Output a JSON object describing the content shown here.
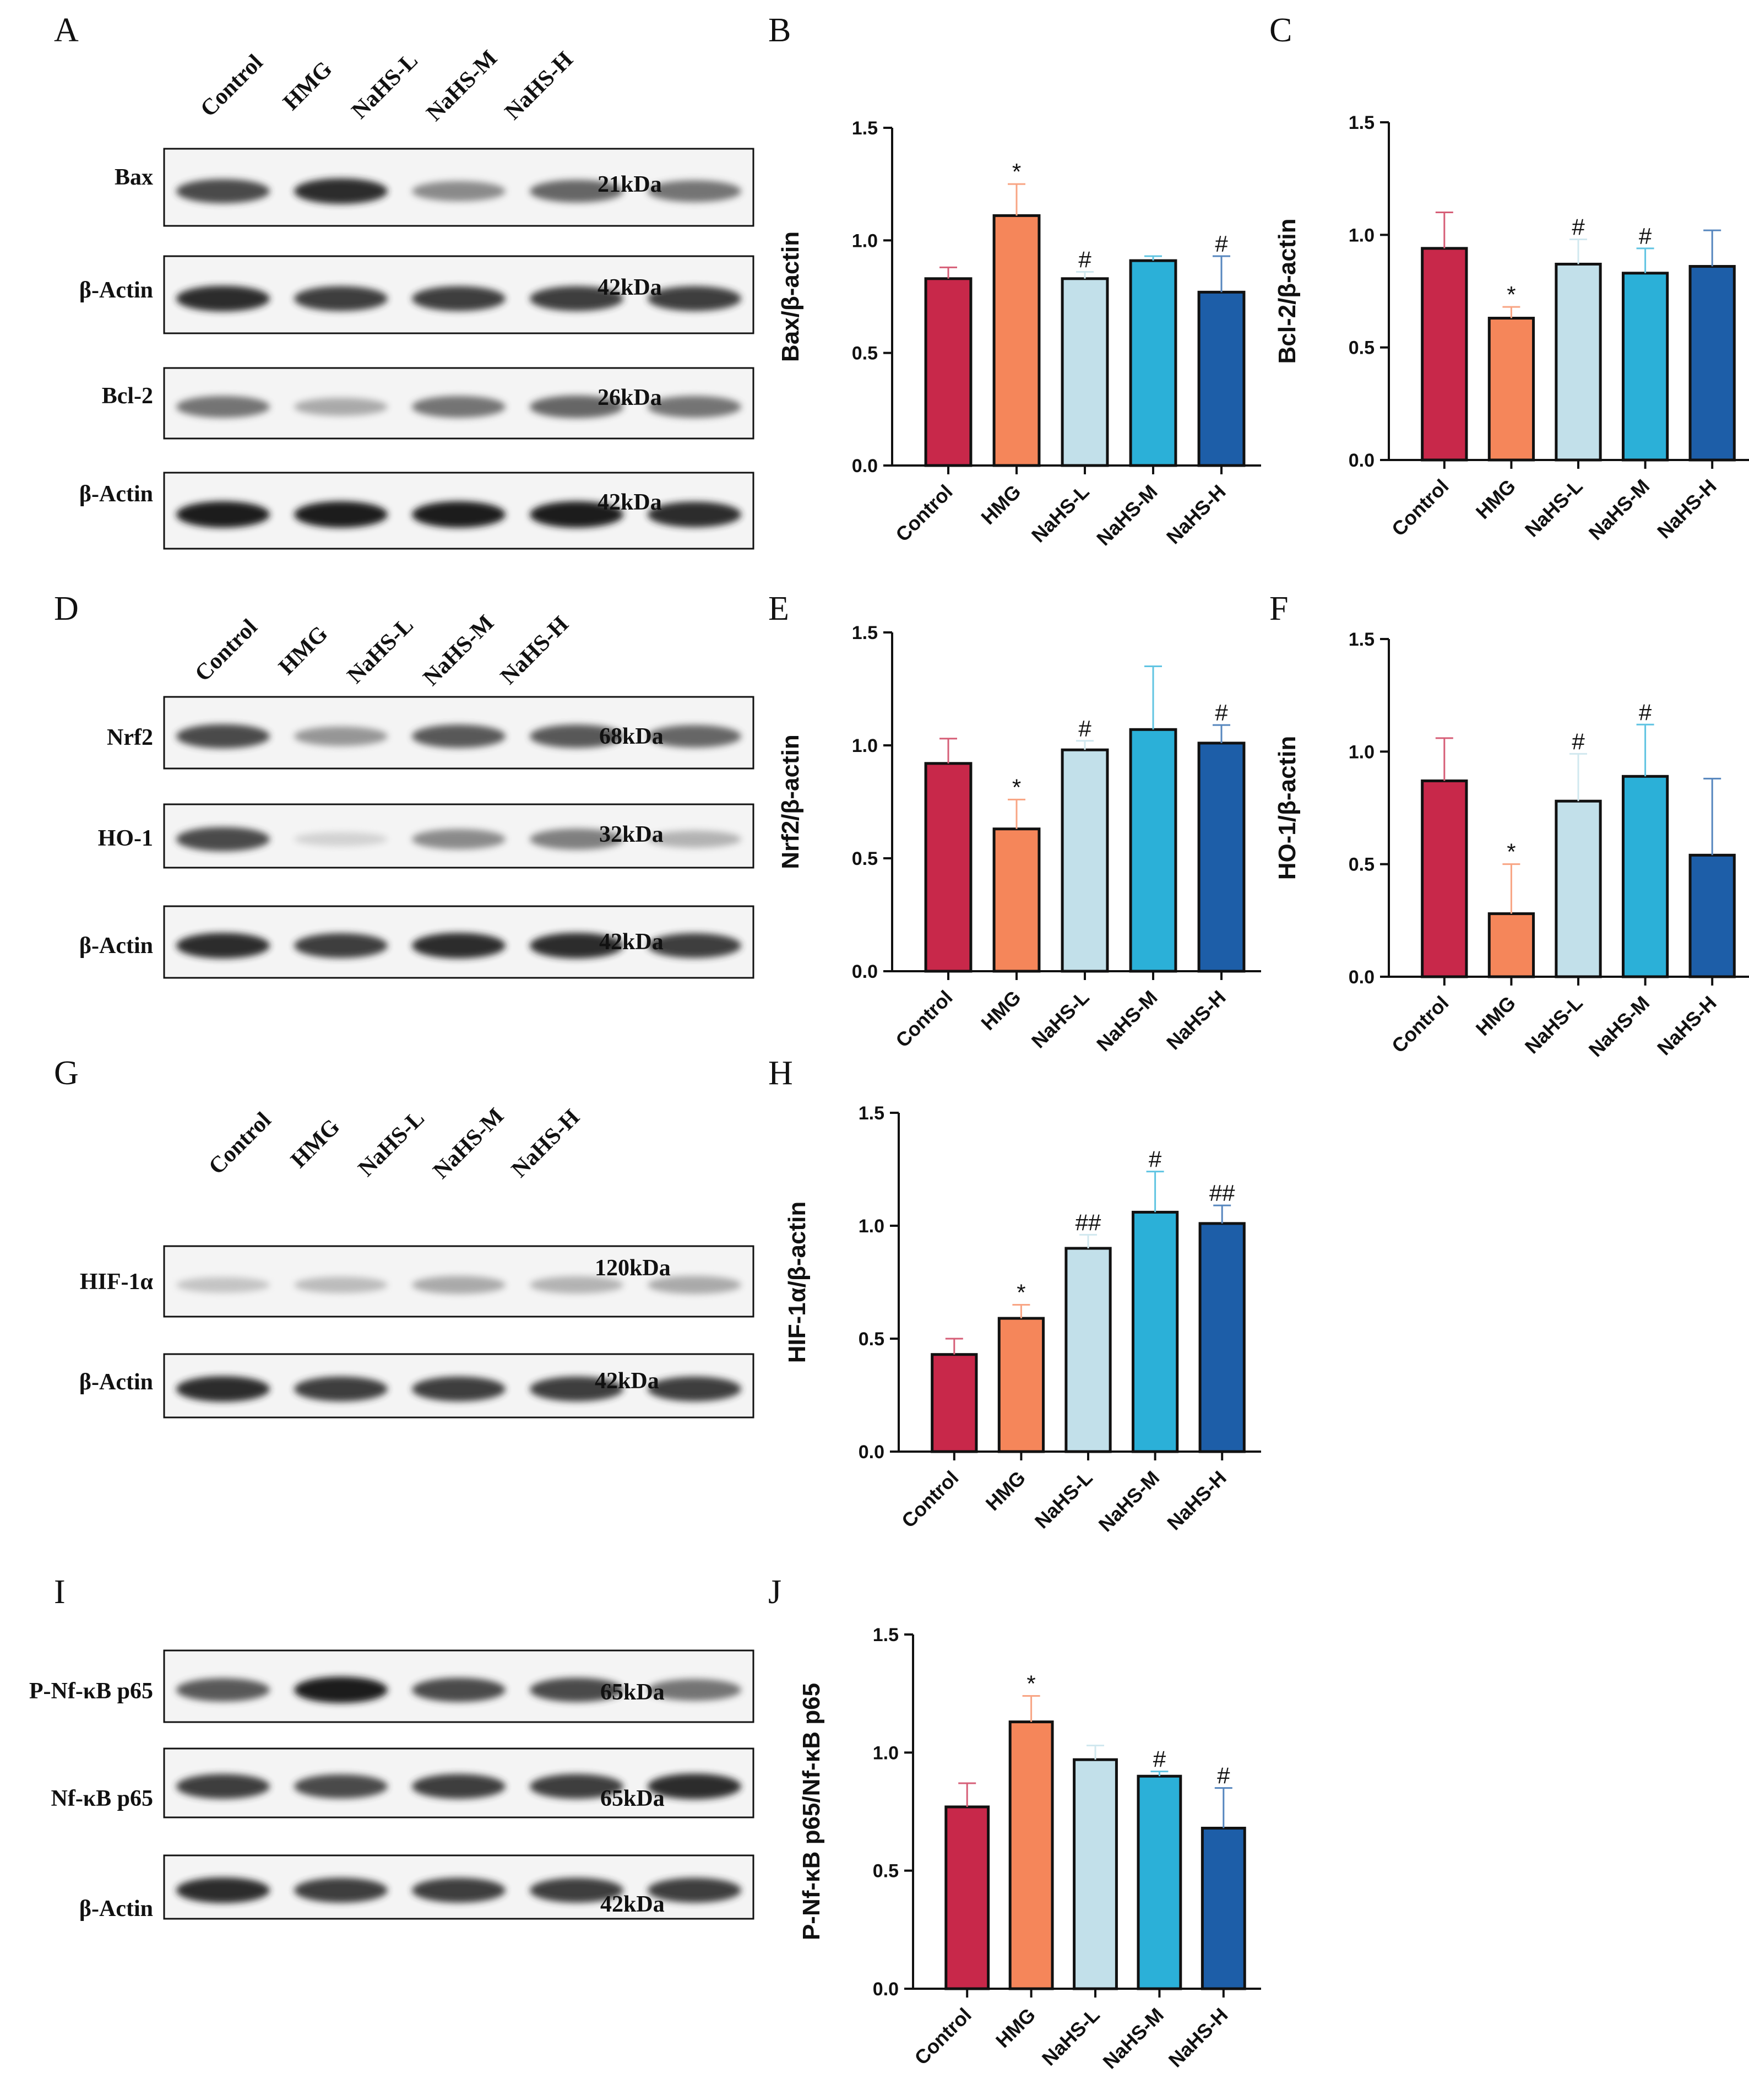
{
  "palette": {
    "Control": "#c8284a",
    "HMG": "#f5865a",
    "NaHS-L": "#c2e0ea",
    "NaHS-M": "#2bb0d8",
    "NaHS-H": "#1d5ea8"
  },
  "blots": [
    {
      "letter": "A",
      "lanes": [
        "Control",
        "HMG",
        "NaHS-L",
        "NaHS-M",
        "NaHS-H"
      ],
      "rows": [
        {
          "label": "Bax",
          "kda": "21kDa",
          "intensity": [
            0.85,
            0.95,
            0.6,
            0.75,
            0.7
          ]
        },
        {
          "label": "β-Actin",
          "kda": "42kDa",
          "intensity": [
            0.95,
            0.9,
            0.9,
            0.9,
            0.9
          ]
        },
        {
          "label": "Bcl-2",
          "kda": "26kDa",
          "intensity": [
            0.7,
            0.45,
            0.7,
            0.75,
            0.7
          ]
        },
        {
          "label": "β-Actin",
          "kda": "42kDa",
          "intensity": [
            1.0,
            1.0,
            1.0,
            1.0,
            0.95
          ]
        }
      ]
    },
    {
      "letter": "D",
      "lanes": [
        "Control",
        "HMG",
        "NaHS-L",
        "NaHS-M",
        "NaHS-H"
      ],
      "rows": [
        {
          "label": "Nrf2",
          "kda": "68kDa",
          "intensity": [
            0.85,
            0.55,
            0.8,
            0.8,
            0.75
          ]
        },
        {
          "label": "HO-1",
          "kda": "32kDa",
          "intensity": [
            0.85,
            0.2,
            0.6,
            0.65,
            0.4
          ]
        },
        {
          "label": "β-Actin",
          "kda": "42kDa",
          "intensity": [
            0.95,
            0.9,
            0.95,
            0.95,
            0.9
          ]
        }
      ]
    },
    {
      "letter": "G",
      "lanes": [
        "Control",
        "HMG",
        "NaHS-L",
        "NaHS-M",
        "NaHS-H"
      ],
      "rows": [
        {
          "label": "HIF-1α",
          "kda": "120kDa",
          "intensity": [
            0.3,
            0.35,
            0.45,
            0.4,
            0.45
          ]
        },
        {
          "label": "β-Actin",
          "kda": "42kDa",
          "intensity": [
            0.95,
            0.9,
            0.9,
            0.9,
            0.9
          ]
        }
      ]
    },
    {
      "letter": "I",
      "lanes": [],
      "rows": [
        {
          "label": "P-Nf-κB p65",
          "kda": "65kDa",
          "intensity": [
            0.8,
            1.0,
            0.85,
            0.85,
            0.7
          ]
        },
        {
          "label": "Nf-κB p65",
          "kda": "65kDa",
          "intensity": [
            0.9,
            0.85,
            0.9,
            0.9,
            0.95
          ]
        },
        {
          "label": "β-Actin",
          "kda": "42kDa",
          "intensity": [
            0.95,
            0.9,
            0.9,
            0.9,
            0.9
          ]
        }
      ]
    }
  ],
  "chart_data": [
    {
      "letter": "B",
      "type": "bar",
      "ylabel": "Bax/β-actin",
      "ylim": [
        0,
        1.5
      ],
      "ticks": [
        "0.0",
        "0.5",
        "1.0",
        "1.5"
      ],
      "categories": [
        "Control",
        "HMG",
        "NaHS-L",
        "NaHS-M",
        "NaHS-H"
      ],
      "values": [
        0.83,
        1.11,
        0.83,
        0.91,
        0.77
      ],
      "errors": [
        0.05,
        0.14,
        0.03,
        0.02,
        0.16
      ],
      "sig": [
        "",
        "*",
        "#",
        "",
        "#"
      ]
    },
    {
      "letter": "C",
      "type": "bar",
      "ylabel": "Bcl-2/β-actin",
      "ylim": [
        0,
        1.5
      ],
      "ticks": [
        "0.0",
        "0.5",
        "1.0",
        "1.5"
      ],
      "categories": [
        "Control",
        "HMG",
        "NaHS-L",
        "NaHS-M",
        "NaHS-H"
      ],
      "values": [
        0.94,
        0.63,
        0.87,
        0.83,
        0.86
      ],
      "errors": [
        0.16,
        0.05,
        0.11,
        0.11,
        0.16
      ],
      "sig": [
        "",
        "*",
        "#",
        "#",
        ""
      ]
    },
    {
      "letter": "E",
      "type": "bar",
      "ylabel": "Nrf2/β-actin",
      "ylim": [
        0,
        1.5
      ],
      "ticks": [
        "0.0",
        "0.5",
        "1.0",
        "1.5"
      ],
      "categories": [
        "Control",
        "HMG",
        "NaHS-L",
        "NaHS-M",
        "NaHS-H"
      ],
      "values": [
        0.92,
        0.63,
        0.98,
        1.07,
        1.01
      ],
      "errors": [
        0.11,
        0.13,
        0.04,
        0.28,
        0.08
      ],
      "sig": [
        "",
        "*",
        "#",
        "",
        "#"
      ]
    },
    {
      "letter": "F",
      "type": "bar",
      "ylabel": "HO-1/β-actin",
      "ylim": [
        0,
        1.5
      ],
      "ticks": [
        "0.0",
        "0.5",
        "1.0",
        "1.5"
      ],
      "categories": [
        "Control",
        "HMG",
        "NaHS-L",
        "NaHS-M",
        "NaHS-H"
      ],
      "values": [
        0.87,
        0.28,
        0.78,
        0.89,
        0.54
      ],
      "errors": [
        0.19,
        0.22,
        0.21,
        0.23,
        0.34
      ],
      "sig": [
        "",
        "*",
        "#",
        "#",
        ""
      ]
    },
    {
      "letter": "H",
      "type": "bar",
      "ylabel": "HIF-1α/β-actin",
      "ylim": [
        0,
        1.5
      ],
      "ticks": [
        "0.0",
        "0.5",
        "1.0",
        "1.5"
      ],
      "categories": [
        "Control",
        "HMG",
        "NaHS-L",
        "NaHS-M",
        "NaHS-H"
      ],
      "values": [
        0.43,
        0.59,
        0.9,
        1.06,
        1.01
      ],
      "errors": [
        0.07,
        0.06,
        0.06,
        0.18,
        0.08
      ],
      "sig": [
        "",
        "*",
        "##",
        "#",
        "##"
      ]
    },
    {
      "letter": "J",
      "type": "bar",
      "ylabel": "P-Nf-κB p65/Nf-κB p65",
      "ylim": [
        0,
        1.5
      ],
      "ticks": [
        "0.0",
        "0.5",
        "1.0",
        "1.5"
      ],
      "categories": [
        "Control",
        "HMG",
        "NaHS-L",
        "NaHS-M",
        "NaHS-H"
      ],
      "values": [
        0.77,
        1.13,
        0.97,
        0.9,
        0.68
      ],
      "errors": [
        0.1,
        0.11,
        0.06,
        0.02,
        0.17
      ],
      "sig": [
        "",
        "*",
        "",
        "#",
        "#"
      ]
    }
  ]
}
